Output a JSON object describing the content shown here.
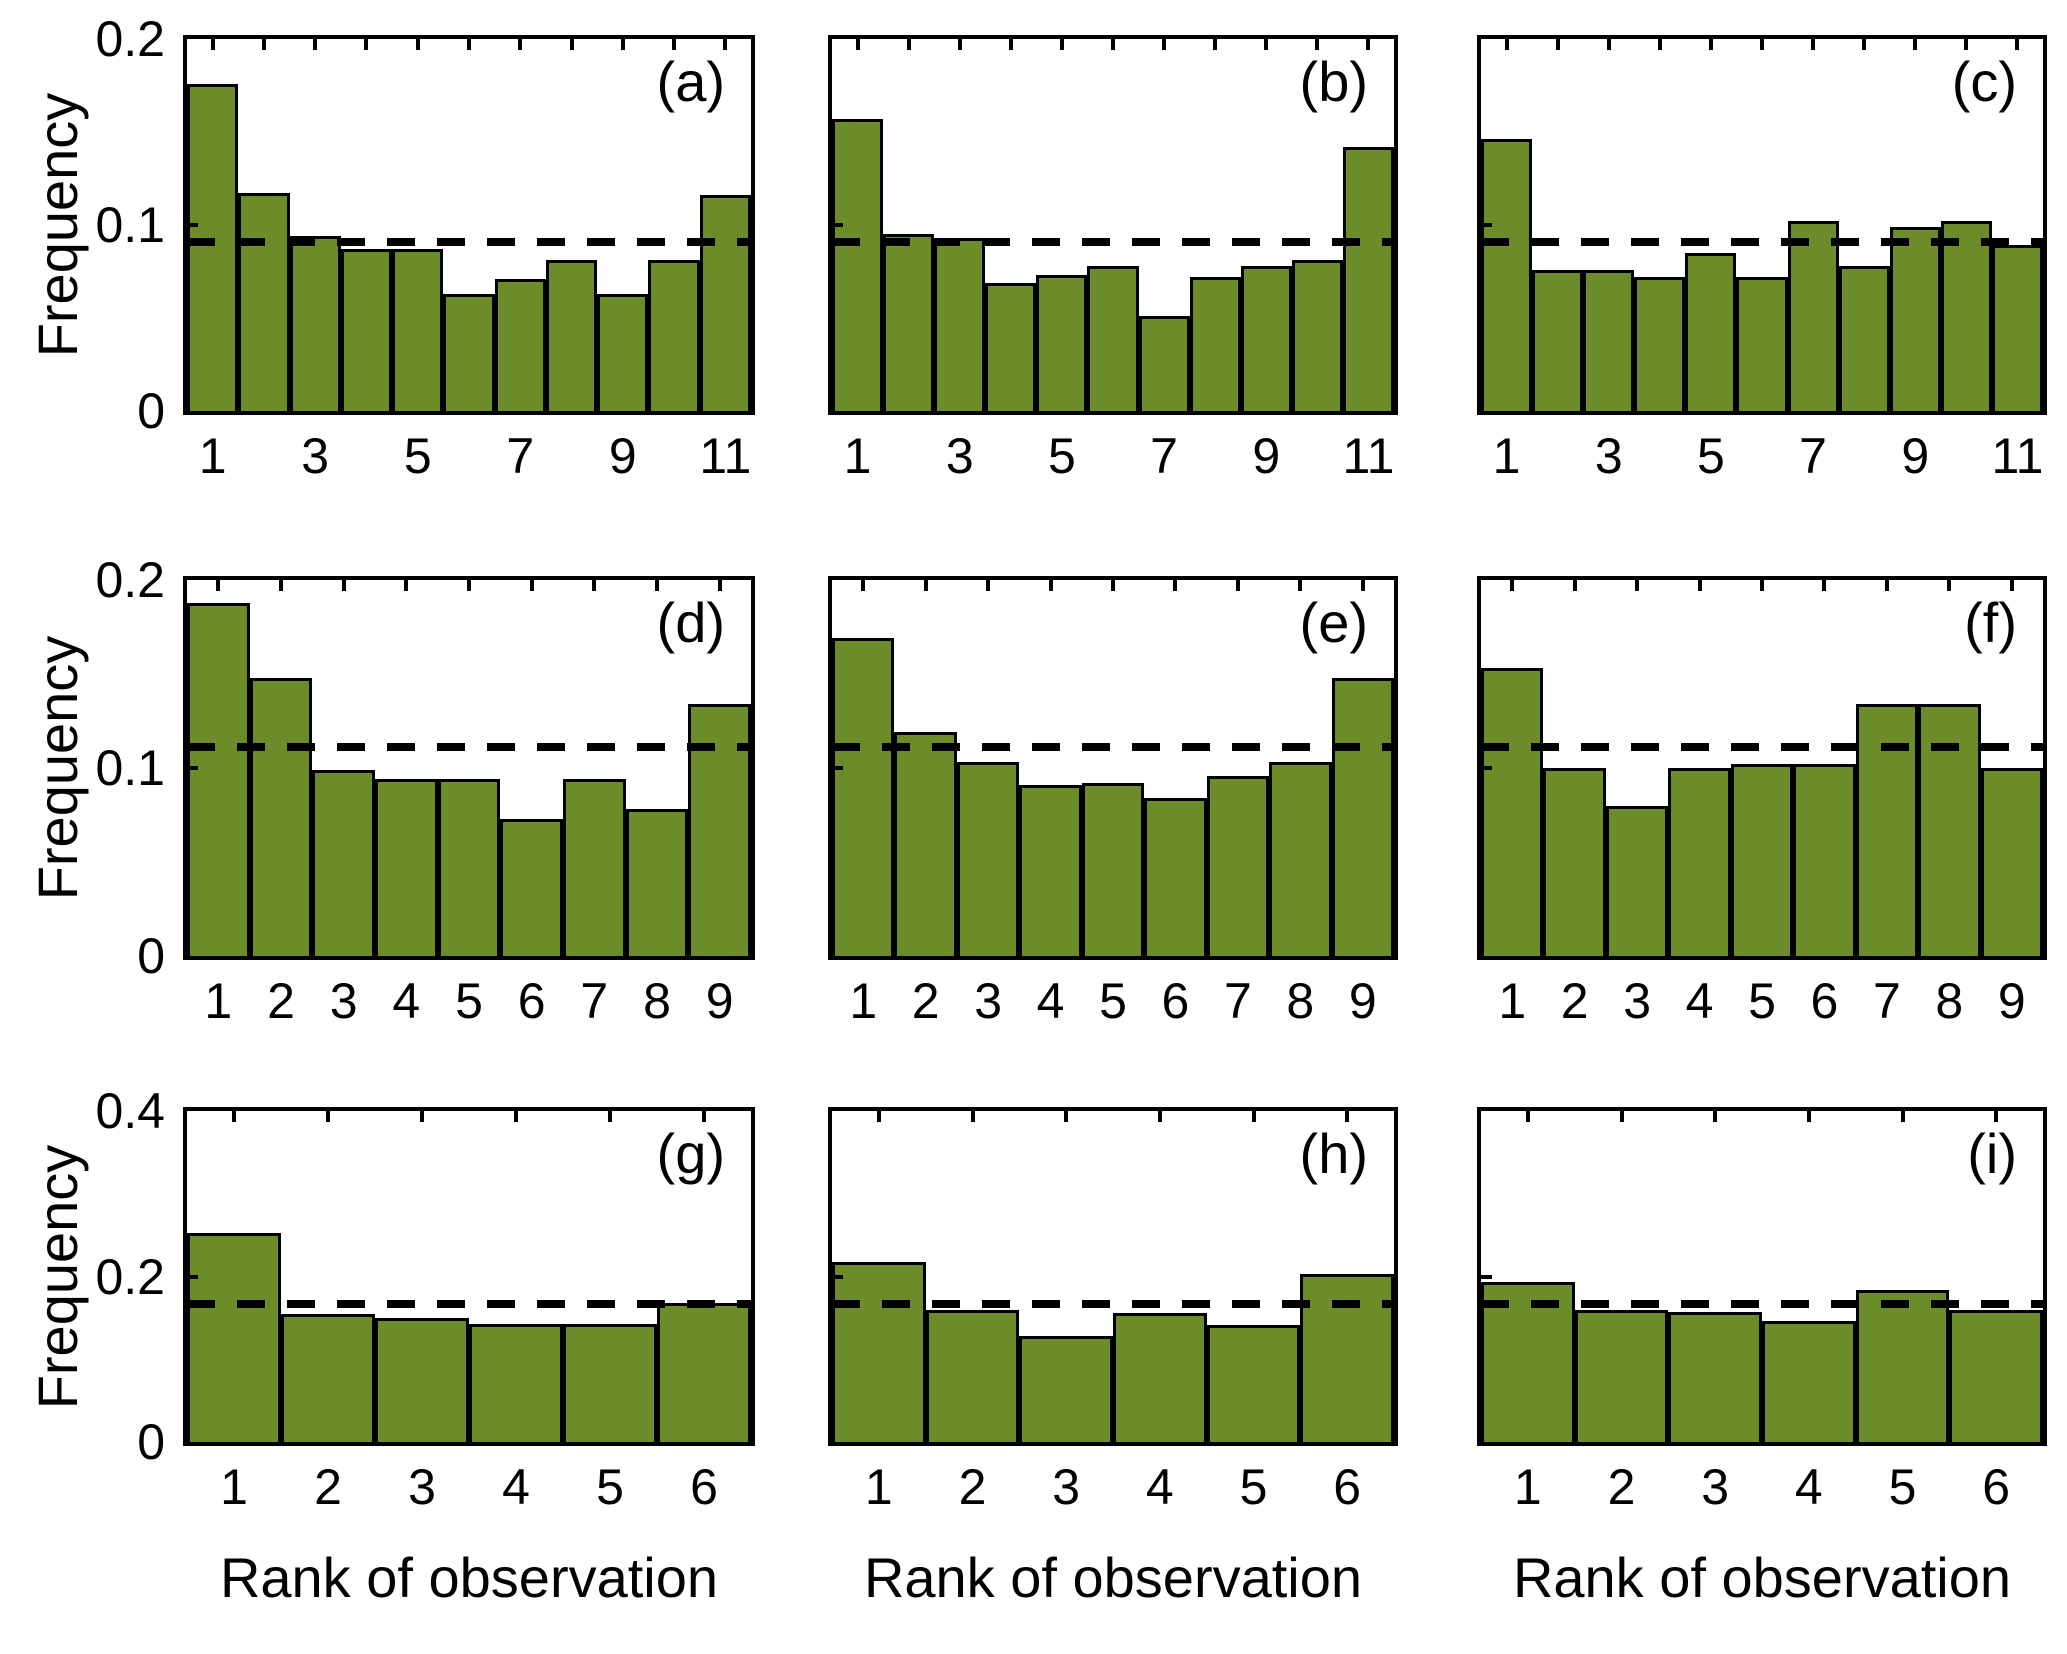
{
  "figure": {
    "background": "#ffffff",
    "bar_fill": "#6b8c28",
    "bar_edge": "#000000",
    "dash_color": "#000000",
    "text_color": "#000000"
  },
  "chart_data": {
    "type": "bar",
    "title": "",
    "subtitle": "",
    "ylabel": "Frequency",
    "xlabel": "Rank of observation",
    "grid": false,
    "legend": "none",
    "layout": "3x3 grid of histograms; dashed line marks expected uniform frequency (1/n)",
    "rows": [
      {
        "ylim": [
          0,
          0.2
        ],
        "yticks": [
          {
            "v": 0,
            "label": "0"
          },
          {
            "v": 0.1,
            "label": "0.1"
          },
          {
            "v": 0.2,
            "label": "0.2"
          }
        ],
        "dashed_value": 0.0909,
        "n_bins": 11
      },
      {
        "ylim": [
          0,
          0.2
        ],
        "yticks": [
          {
            "v": 0,
            "label": "0"
          },
          {
            "v": 0.1,
            "label": "0.1"
          },
          {
            "v": 0.2,
            "label": "0.2"
          }
        ],
        "dashed_value": 0.1111,
        "n_bins": 9
      },
      {
        "ylim": [
          0,
          0.4
        ],
        "yticks": [
          {
            "v": 0,
            "label": "0"
          },
          {
            "v": 0.2,
            "label": "0.2"
          },
          {
            "v": 0.4,
            "label": "0.4"
          }
        ],
        "dashed_value": 0.1667,
        "n_bins": 6
      }
    ],
    "panels": [
      {
        "id": "a",
        "label": "(a)",
        "row": 0,
        "col": 0,
        "categories": [
          1,
          2,
          3,
          4,
          5,
          6,
          7,
          8,
          9,
          10,
          11
        ],
        "values": [
          0.176,
          0.117,
          0.094,
          0.087,
          0.087,
          0.063,
          0.071,
          0.081,
          0.063,
          0.081,
          0.116
        ],
        "xticks": [
          {
            "pos": 1,
            "label": "1"
          },
          {
            "pos": 3,
            "label": "3"
          },
          {
            "pos": 5,
            "label": "5"
          },
          {
            "pos": 7,
            "label": "7"
          },
          {
            "pos": 9,
            "label": "9"
          },
          {
            "pos": 11,
            "label": "11"
          }
        ]
      },
      {
        "id": "b",
        "label": "(b)",
        "row": 0,
        "col": 1,
        "categories": [
          1,
          2,
          3,
          4,
          5,
          6,
          7,
          8,
          9,
          10,
          11
        ],
        "values": [
          0.157,
          0.095,
          0.093,
          0.069,
          0.073,
          0.078,
          0.051,
          0.072,
          0.078,
          0.081,
          0.142
        ],
        "xticks": [
          {
            "pos": 1,
            "label": "1"
          },
          {
            "pos": 3,
            "label": "3"
          },
          {
            "pos": 5,
            "label": "5"
          },
          {
            "pos": 7,
            "label": "7"
          },
          {
            "pos": 9,
            "label": "9"
          },
          {
            "pos": 11,
            "label": "11"
          }
        ]
      },
      {
        "id": "c",
        "label": "(c)",
        "row": 0,
        "col": 2,
        "categories": [
          1,
          2,
          3,
          4,
          5,
          6,
          7,
          8,
          9,
          10,
          11
        ],
        "values": [
          0.146,
          0.076,
          0.076,
          0.072,
          0.085,
          0.072,
          0.102,
          0.078,
          0.099,
          0.102,
          0.089
        ],
        "xticks": [
          {
            "pos": 1,
            "label": "1"
          },
          {
            "pos": 3,
            "label": "3"
          },
          {
            "pos": 5,
            "label": "5"
          },
          {
            "pos": 7,
            "label": "7"
          },
          {
            "pos": 9,
            "label": "9"
          },
          {
            "pos": 11,
            "label": "11"
          }
        ]
      },
      {
        "id": "d",
        "label": "(d)",
        "row": 1,
        "col": 0,
        "categories": [
          1,
          2,
          3,
          4,
          5,
          6,
          7,
          8,
          9
        ],
        "values": [
          0.188,
          0.148,
          0.099,
          0.094,
          0.094,
          0.073,
          0.094,
          0.078,
          0.134
        ],
        "xticks": [
          {
            "pos": 1,
            "label": "1"
          },
          {
            "pos": 2,
            "label": "2"
          },
          {
            "pos": 3,
            "label": "3"
          },
          {
            "pos": 4,
            "label": "4"
          },
          {
            "pos": 5,
            "label": "5"
          },
          {
            "pos": 6,
            "label": "6"
          },
          {
            "pos": 7,
            "label": "7"
          },
          {
            "pos": 8,
            "label": "8"
          },
          {
            "pos": 9,
            "label": "9"
          }
        ]
      },
      {
        "id": "e",
        "label": "(e)",
        "row": 1,
        "col": 1,
        "categories": [
          1,
          2,
          3,
          4,
          5,
          6,
          7,
          8,
          9
        ],
        "values": [
          0.169,
          0.119,
          0.103,
          0.091,
          0.092,
          0.084,
          0.096,
          0.103,
          0.148
        ],
        "xticks": [
          {
            "pos": 1,
            "label": "1"
          },
          {
            "pos": 2,
            "label": "2"
          },
          {
            "pos": 3,
            "label": "3"
          },
          {
            "pos": 4,
            "label": "4"
          },
          {
            "pos": 5,
            "label": "5"
          },
          {
            "pos": 6,
            "label": "6"
          },
          {
            "pos": 7,
            "label": "7"
          },
          {
            "pos": 8,
            "label": "8"
          },
          {
            "pos": 9,
            "label": "9"
          }
        ]
      },
      {
        "id": "f",
        "label": "(f)",
        "row": 1,
        "col": 2,
        "categories": [
          1,
          2,
          3,
          4,
          5,
          6,
          7,
          8,
          9
        ],
        "values": [
          0.153,
          0.1,
          0.08,
          0.1,
          0.102,
          0.102,
          0.134,
          0.134,
          0.1
        ],
        "xticks": [
          {
            "pos": 1,
            "label": "1"
          },
          {
            "pos": 2,
            "label": "2"
          },
          {
            "pos": 3,
            "label": "3"
          },
          {
            "pos": 4,
            "label": "4"
          },
          {
            "pos": 5,
            "label": "5"
          },
          {
            "pos": 6,
            "label": "6"
          },
          {
            "pos": 7,
            "label": "7"
          },
          {
            "pos": 8,
            "label": "8"
          },
          {
            "pos": 9,
            "label": "9"
          }
        ]
      },
      {
        "id": "g",
        "label": "(g)",
        "row": 2,
        "col": 0,
        "categories": [
          1,
          2,
          3,
          4,
          5,
          6
        ],
        "values": [
          0.253,
          0.155,
          0.15,
          0.143,
          0.143,
          0.168
        ],
        "xticks": [
          {
            "pos": 1,
            "label": "1"
          },
          {
            "pos": 2,
            "label": "2"
          },
          {
            "pos": 3,
            "label": "3"
          },
          {
            "pos": 4,
            "label": "4"
          },
          {
            "pos": 5,
            "label": "5"
          },
          {
            "pos": 6,
            "label": "6"
          }
        ]
      },
      {
        "id": "h",
        "label": "(h)",
        "row": 2,
        "col": 1,
        "categories": [
          1,
          2,
          3,
          4,
          5,
          6
        ],
        "values": [
          0.217,
          0.16,
          0.128,
          0.156,
          0.142,
          0.203
        ],
        "xticks": [
          {
            "pos": 1,
            "label": "1"
          },
          {
            "pos": 2,
            "label": "2"
          },
          {
            "pos": 3,
            "label": "3"
          },
          {
            "pos": 4,
            "label": "4"
          },
          {
            "pos": 5,
            "label": "5"
          },
          {
            "pos": 6,
            "label": "6"
          }
        ]
      },
      {
        "id": "i",
        "label": "(i)",
        "row": 2,
        "col": 2,
        "categories": [
          1,
          2,
          3,
          4,
          5,
          6
        ],
        "values": [
          0.193,
          0.16,
          0.157,
          0.146,
          0.184,
          0.159
        ],
        "xticks": [
          {
            "pos": 1,
            "label": "1"
          },
          {
            "pos": 2,
            "label": "2"
          },
          {
            "pos": 3,
            "label": "3"
          },
          {
            "pos": 4,
            "label": "4"
          },
          {
            "pos": 5,
            "label": "5"
          },
          {
            "pos": 6,
            "label": "6"
          }
        ]
      }
    ]
  }
}
